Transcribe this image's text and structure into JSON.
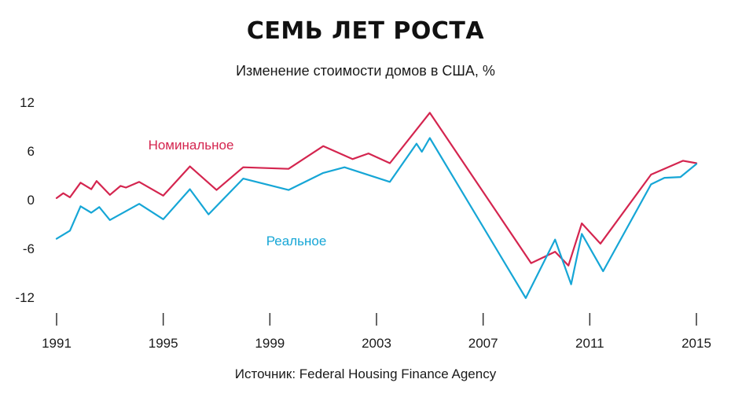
{
  "title": "СЕМЬ ЛЕТ РОСТА",
  "subtitle": "Изменение стоимости домов в США, %",
  "source": "Источник: Federal Housing Finance Agency",
  "chart_data": {
    "type": "line",
    "ylim": [
      -12,
      12
    ],
    "xlim": [
      1991,
      2015
    ],
    "yticks": [
      12,
      6,
      0,
      -6,
      -12
    ],
    "ytick_labels": [
      "12",
      "6",
      "0",
      "-6",
      "-12"
    ],
    "xticks": [
      1991,
      1995,
      1999,
      2003,
      2007,
      2011,
      2015
    ],
    "xtick_labels": [
      "1991",
      "1995",
      "1999",
      "2003",
      "2007",
      "2011",
      "2015"
    ],
    "grid": false,
    "series": [
      {
        "name": "Номинальное",
        "color": "#d4254f",
        "x": [
          1991.0,
          1991.25,
          1991.5,
          1991.9,
          1992.3,
          1992.5,
          1993.0,
          1993.4,
          1993.6,
          1994.1,
          1995.0,
          1996.0,
          1997.0,
          1998.0,
          1999.7,
          2001.0,
          2002.1,
          2002.7,
          2003.5,
          2005.0,
          2008.8,
          2009.7,
          2010.2,
          2010.7,
          2011.4,
          2013.3,
          2014.5,
          2015.0
        ],
        "values": [
          0.2,
          0.8,
          0.3,
          2.1,
          1.3,
          2.3,
          0.6,
          1.7,
          1.5,
          2.2,
          0.5,
          4.1,
          1.2,
          4.0,
          3.8,
          6.6,
          5.0,
          5.7,
          4.5,
          10.7,
          -7.8,
          -6.4,
          -8.1,
          -2.9,
          -5.4,
          3.1,
          4.8,
          4.5
        ]
      },
      {
        "name": "Реальное",
        "color": "#16a6d6",
        "x": [
          1991.0,
          1991.5,
          1991.9,
          1992.3,
          1992.6,
          1993.0,
          1994.1,
          1995.0,
          1996.0,
          1996.7,
          1998.0,
          1999.7,
          2001.0,
          2001.8,
          2003.5,
          2004.5,
          2004.7,
          2005.0,
          2008.6,
          2009.7,
          2010.3,
          2010.7,
          2011.5,
          2013.3,
          2013.8,
          2014.4,
          2015.0
        ],
        "values": [
          -4.8,
          -3.8,
          -0.8,
          -1.6,
          -0.9,
          -2.5,
          -0.5,
          -2.4,
          1.3,
          -1.8,
          2.6,
          1.2,
          3.3,
          4.0,
          2.2,
          6.9,
          5.9,
          7.6,
          -12.1,
          -4.9,
          -10.4,
          -4.2,
          -8.8,
          1.9,
          2.7,
          2.8,
          4.4
        ]
      }
    ]
  }
}
